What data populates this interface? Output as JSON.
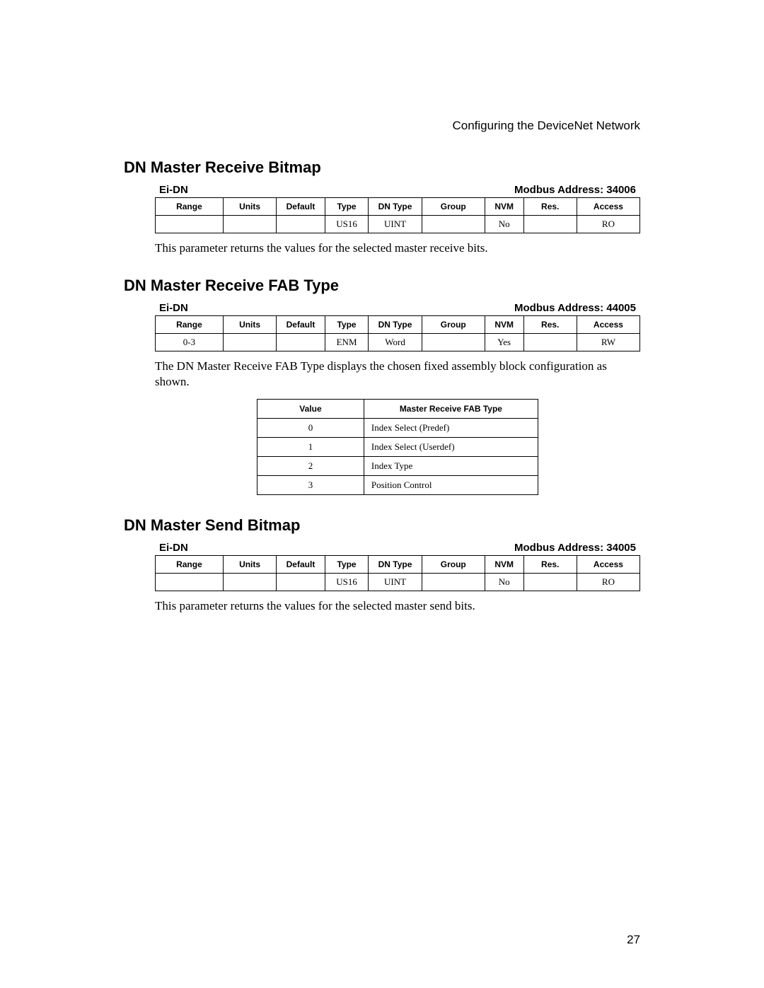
{
  "header": "Configuring the DeviceNet Network",
  "page_number": "27",
  "columns": [
    "Range",
    "Units",
    "Default",
    "Type",
    "DN Type",
    "Group",
    "NVM",
    "Res.",
    "Access"
  ],
  "col_widths_pct": [
    14,
    11,
    10,
    9,
    11,
    13,
    8,
    11,
    13
  ],
  "sections": [
    {
      "title": "DN Master Receive Bitmap",
      "category": "Ei-DN",
      "modbus_label": "Modbus Address: 34006",
      "row": {
        "Range": "",
        "Units": "",
        "Default": "",
        "Type": "US16",
        "DN Type": "UINT",
        "Group": "",
        "NVM": "No",
        "Res.": "",
        "Access": "RO"
      },
      "description": "This parameter returns the values for the selected master receive bits."
    },
    {
      "title": "DN Master Receive FAB Type",
      "category": "Ei-DN",
      "modbus_label": "Modbus Address: 44005",
      "row": {
        "Range": "0-3",
        "Units": "",
        "Default": "",
        "Type": "ENM",
        "DN Type": "Word",
        "Group": "",
        "NVM": "Yes",
        "Res.": "",
        "Access": "RW"
      },
      "description": "The DN Master Receive FAB Type displays the chosen fixed assembly block configuration as shown.",
      "value_table": {
        "headers": [
          "Value",
          "Master Receive FAB Type"
        ],
        "col_widths_pct": [
          38,
          62
        ],
        "rows": [
          [
            "0",
            "Index Select (Predef)"
          ],
          [
            "1",
            "Index Select (Userdef)"
          ],
          [
            "2",
            "Index Type"
          ],
          [
            "3",
            "Position Control"
          ]
        ]
      }
    },
    {
      "title": "DN Master Send Bitmap",
      "category": "Ei-DN",
      "modbus_label": "Modbus Address: 34005",
      "row": {
        "Range": "",
        "Units": "",
        "Default": "",
        "Type": "US16",
        "DN Type": "UINT",
        "Group": "",
        "NVM": "No",
        "Res.": "",
        "Access": "RO"
      },
      "description": "This parameter returns the values for the selected master send bits."
    }
  ]
}
